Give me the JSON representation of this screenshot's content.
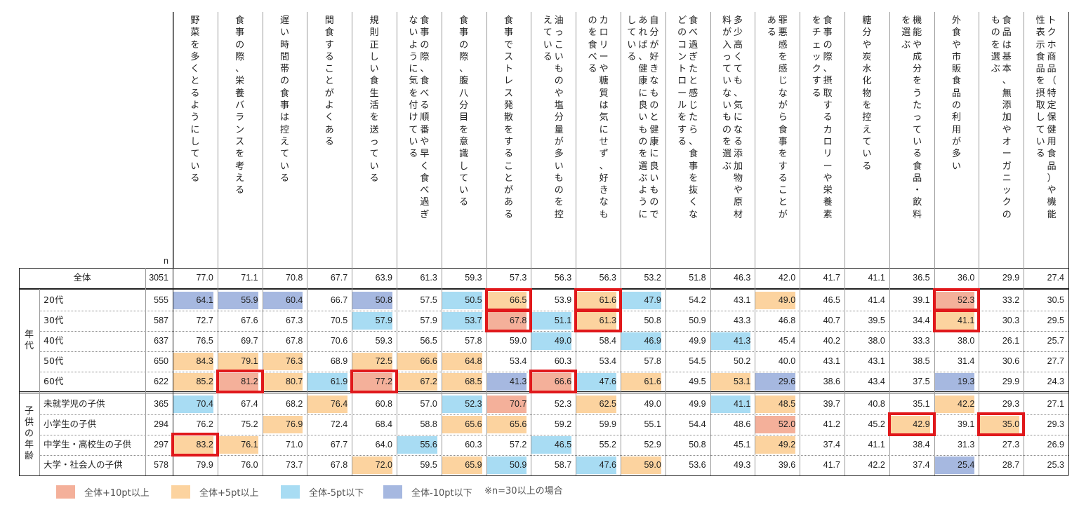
{
  "chart_data": {
    "type": "table",
    "n_label": "n",
    "columns": [
      "野菜を多くとるようにしている",
      "食事の際、栄養バランスを考える",
      "遅い時間帯の食事は控えている",
      "間食することがよくある",
      "規則正しい食生活を送っている",
      "食事の際、食べる順番や早く食べ過ぎないように気を付けている",
      "食事の際、腹八分目を意識している",
      "食事でストレス発散をすることがある",
      "油っこいものや塩分量が多いものを控えている",
      "カロリーや糖質は気にせず、好きなものを食べる",
      "自分が好きなものと健康に良いものであれば、健康に良いものを選ぶようにしている",
      "食べ過ぎたと感じたら、食事を抜くなどのコントロールをする",
      "多少高くても、気になる添加物や原材料が入っていないものを選ぶ",
      "罪悪感を感じながら食事をすることがある",
      "食事の際、摂取するカロリーや栄養素をチェックする",
      "糖分や炭水化物を控えている",
      "機能や成分をうたっている食品・飲料を選ぶ",
      "外食や市販食品の利用が多い",
      "食品は基本、無添加やオーガニックのものを選ぶ",
      "トクホ商品（特定保健用食品）や機能性表示食品を摂取している"
    ],
    "column_lines": [
      [
        "野菜を多くとるようにしている"
      ],
      [
        "食事の際、栄養バランスを考える"
      ],
      [
        "遅い時間帯の食事は控えている"
      ],
      [
        "間食することがよくある"
      ],
      [
        "規則正しい食生活を送っている"
      ],
      [
        "食事の際、食べる順番や早く食べ過ぎ",
        "ないように気を付けている"
      ],
      [
        "食事の際、腹八分目を意識している"
      ],
      [
        "食事でストレス発散をすることがある"
      ],
      [
        "油っこいものや塩分量が多いものを控",
        "えている"
      ],
      [
        "カロリーや糖質は気にせず、好きなも",
        "のを食べる"
      ],
      [
        "自分が好きなものと健康に良いもので",
        "あれば、健康に良いものを選ぶように",
        "している"
      ],
      [
        "食べ過ぎたと感じたら、食事を抜くな",
        "どのコントロールをする"
      ],
      [
        "多少高くても、気になる添加物や原材",
        "料が入っていないものを選ぶ"
      ],
      [
        "罪悪感を感じながら食事をすることが",
        "ある"
      ],
      [
        "食事の際、摂取するカロリーや栄養素",
        "をチェックする"
      ],
      [
        "糖分や炭水化物を控えている"
      ],
      [
        "機能や成分をうたっている食品・飲料",
        "を選ぶ"
      ],
      [
        "外食や市販食品の利用が多い"
      ],
      [
        "食品は基本、無添加やオーガニックの",
        "ものを選ぶ"
      ],
      [
        "トクホ商品（特定保健用食品）や機能",
        "性表示食品を摂取している"
      ]
    ],
    "total": {
      "label": "全体",
      "n": 3051,
      "values": [
        77.0,
        71.1,
        70.8,
        67.7,
        63.9,
        61.3,
        59.3,
        57.3,
        56.3,
        56.3,
        53.2,
        51.8,
        46.3,
        42.0,
        41.7,
        41.1,
        36.5,
        36.0,
        29.9,
        27.4
      ]
    },
    "groups": [
      {
        "label": "年代",
        "rows": [
          {
            "label": "20代",
            "n": 555,
            "values": [
              64.1,
              55.9,
              60.4,
              66.7,
              50.8,
              57.5,
              50.5,
              66.5,
              53.9,
              61.6,
              47.9,
              54.2,
              43.1,
              49.0,
              46.5,
              41.4,
              39.1,
              52.3,
              33.2,
              30.5
            ]
          },
          {
            "label": "30代",
            "n": 587,
            "values": [
              72.7,
              67.6,
              67.3,
              70.5,
              57.9,
              57.9,
              53.7,
              67.8,
              51.1,
              61.3,
              50.8,
              50.9,
              43.3,
              46.8,
              40.7,
              39.5,
              34.4,
              41.1,
              30.3,
              29.5
            ]
          },
          {
            "label": "40代",
            "n": 637,
            "values": [
              76.5,
              69.7,
              67.8,
              70.6,
              59.3,
              56.5,
              57.8,
              59.0,
              49.0,
              58.4,
              46.9,
              49.9,
              41.3,
              45.4,
              40.2,
              38.0,
              33.3,
              38.0,
              26.1,
              25.7
            ]
          },
          {
            "label": "50代",
            "n": 650,
            "values": [
              84.3,
              79.1,
              76.3,
              68.9,
              72.5,
              66.6,
              64.8,
              53.4,
              60.3,
              53.4,
              57.8,
              54.5,
              50.2,
              40.0,
              43.1,
              43.1,
              38.5,
              31.4,
              30.6,
              27.7
            ]
          },
          {
            "label": "60代",
            "n": 622,
            "values": [
              85.2,
              81.2,
              80.7,
              61.9,
              77.2,
              67.2,
              68.5,
              41.3,
              66.6,
              47.6,
              61.6,
              49.5,
              53.1,
              29.6,
              38.6,
              43.4,
              37.5,
              19.3,
              29.9,
              24.3
            ]
          }
        ]
      },
      {
        "label": "子供の年齢",
        "rows": [
          {
            "label": "未就学児の子供",
            "n": 365,
            "values": [
              70.4,
              67.4,
              68.2,
              76.4,
              60.8,
              57.0,
              52.3,
              70.7,
              52.3,
              62.5,
              49.0,
              49.9,
              41.1,
              48.5,
              39.7,
              40.8,
              35.1,
              42.2,
              29.3,
              27.1
            ]
          },
          {
            "label": "小学生の子供",
            "n": 294,
            "values": [
              76.2,
              75.2,
              76.9,
              72.4,
              68.4,
              58.8,
              65.6,
              65.6,
              59.2,
              59.9,
              55.1,
              54.4,
              48.6,
              52.0,
              41.2,
              45.2,
              42.9,
              39.1,
              35.0,
              29.3
            ]
          },
          {
            "label": "中学生・高校生の子供",
            "n": 297,
            "values": [
              83.2,
              76.1,
              71.0,
              67.7,
              64.0,
              55.6,
              60.3,
              57.2,
              46.5,
              55.2,
              52.9,
              50.8,
              45.1,
              49.2,
              37.4,
              41.1,
              38.4,
              31.3,
              27.3,
              26.9
            ]
          },
          {
            "label": "大学・社会人の子供",
            "n": 578,
            "values": [
              79.9,
              76.0,
              73.7,
              67.8,
              72.0,
              59.5,
              65.9,
              50.9,
              58.7,
              47.6,
              59.0,
              53.6,
              49.3,
              39.6,
              41.7,
              42.2,
              37.4,
              25.4,
              28.7,
              25.3
            ]
          }
        ]
      }
    ],
    "legend": [
      {
        "label": "全体+10pt以上",
        "color": "#f4b09a"
      },
      {
        "label": "全体+5pt以上",
        "color": "#fcd39f"
      },
      {
        "label": "全体-5pt以下",
        "color": "#a8dcf3"
      },
      {
        "label": "全体-10pt以下",
        "color": "#a6b8e0"
      }
    ],
    "note": "※n=30以上の場合",
    "highlight_boxes": [
      {
        "row": "20代",
        "col": 7
      },
      {
        "row": "30代",
        "col": 7
      },
      {
        "row": "20代",
        "col": 9
      },
      {
        "row": "30代",
        "col": 9
      },
      {
        "row": "20代",
        "col": 17
      },
      {
        "row": "30代",
        "col": 17
      },
      {
        "row": "60代",
        "col": 1
      },
      {
        "row": "60代",
        "col": 4
      },
      {
        "row": "60代",
        "col": 8
      },
      {
        "row": "小学生の子供",
        "col": 16
      },
      {
        "row": "小学生の子供",
        "col": 18
      },
      {
        "row": "中学生・高校生の子供",
        "col": 0
      }
    ]
  }
}
